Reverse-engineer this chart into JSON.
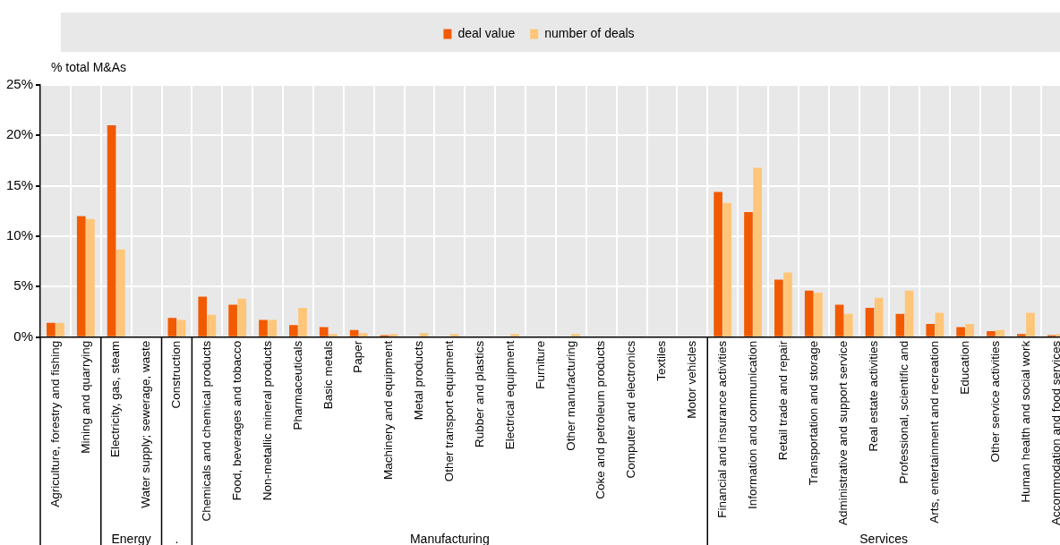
{
  "chart_data": {
    "type": "bar",
    "ylabel": "% total M&As",
    "categories": [
      "Agriculture, forestry and fishing",
      "Mining and quarrying",
      "Electricity, gas, steam",
      "Water supply; sewerage, waste",
      "Construction",
      "Chemicals and chemical products",
      "Food, beverages and tobacco",
      "Non-metallic mineral products",
      "Pharmaceuticals",
      "Basic metals",
      "Paper",
      "Machinery and equipment",
      "Metal products",
      "Other transport equipment",
      "Rubber and plastics",
      "Electrical equipment",
      "Furniture",
      "Other manufacturing",
      "Coke and petroleum products",
      "Computer and electronics",
      "Textiles",
      "Motor vehicles",
      "Financial and insurance activities",
      "Information and communication",
      "Retail trade and repair",
      "Transportation and storage",
      "Administrative and support service",
      "Real estate activities",
      "Professional, scientific and",
      "Arts, entertainment and recreation",
      "Education",
      "Other service activities",
      "Human health and social work",
      "Accommodation and food services"
    ],
    "series": [
      {
        "name": "deal value",
        "color": "#f25a00",
        "values": [
          1.4,
          12.0,
          21.0,
          0,
          1.9,
          4.0,
          3.2,
          1.7,
          1.2,
          1.0,
          0.7,
          0.2,
          0,
          0,
          0,
          0,
          0,
          0,
          0,
          0,
          0,
          0,
          14.4,
          12.4,
          5.7,
          4.6,
          3.2,
          2.9,
          2.3,
          1.3,
          1.0,
          0.6,
          0.3,
          0.2
        ]
      },
      {
        "name": "number of deals",
        "color": "#ffc578",
        "values": [
          1.4,
          11.7,
          8.7,
          0,
          1.7,
          2.2,
          3.8,
          1.7,
          2.9,
          0.3,
          0.4,
          0.3,
          0.4,
          0.3,
          0,
          0.3,
          null,
          0.3,
          0,
          0,
          0,
          null,
          13.3,
          16.8,
          6.4,
          4.4,
          2.3,
          3.9,
          4.6,
          2.4,
          1.3,
          0.7,
          2.4,
          0.3
        ]
      }
    ],
    "ylim": [
      0,
      25
    ],
    "yticks": [
      {
        "value": 0,
        "label": "0%"
      },
      {
        "value": 5,
        "label": "5%"
      },
      {
        "value": 10,
        "label": "10%"
      },
      {
        "value": 15,
        "label": "15%"
      },
      {
        "value": 20,
        "label": "20%"
      },
      {
        "value": 25,
        "label": "25%"
      }
    ],
    "grid": true,
    "legend": "top",
    "annotations": [
      "Energy",
      ".",
      "Manufacturing",
      "Services"
    ]
  }
}
